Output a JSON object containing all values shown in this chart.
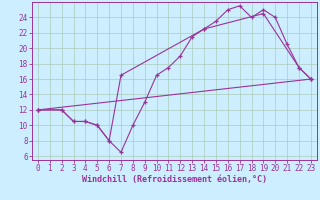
{
  "bg_color": "#cceeff",
  "grid_color": "#aaccbb",
  "line_color": "#993399",
  "xlabel": "Windchill (Refroidissement éolien,°C)",
  "xlim": [
    -0.5,
    23.5
  ],
  "ylim": [
    5.5,
    26
  ],
  "yticks": [
    6,
    8,
    10,
    12,
    14,
    16,
    18,
    20,
    22,
    24
  ],
  "xticks": [
    0,
    1,
    2,
    3,
    4,
    5,
    6,
    7,
    8,
    9,
    10,
    11,
    12,
    13,
    14,
    15,
    16,
    17,
    18,
    19,
    20,
    21,
    22,
    23
  ],
  "line1_x": [
    0,
    2,
    3,
    4,
    5,
    6,
    7,
    8,
    9,
    10,
    11,
    12,
    13,
    14,
    15,
    16,
    17,
    18,
    19,
    20,
    21,
    22,
    23
  ],
  "line1_y": [
    12,
    12,
    10.5,
    10.5,
    10,
    8,
    6.5,
    10,
    13,
    16.5,
    17.5,
    19,
    21.5,
    22.5,
    23.5,
    25,
    25.5,
    24,
    25,
    24,
    20.5,
    17.5,
    16
  ],
  "line2_x": [
    0,
    2,
    3,
    4,
    5,
    6,
    7,
    14,
    19,
    22,
    23
  ],
  "line2_y": [
    12,
    12,
    10.5,
    10.5,
    10,
    8,
    16.5,
    22.5,
    24.5,
    17.5,
    16
  ],
  "line3_x": [
    0,
    23
  ],
  "line3_y": [
    12,
    16
  ]
}
